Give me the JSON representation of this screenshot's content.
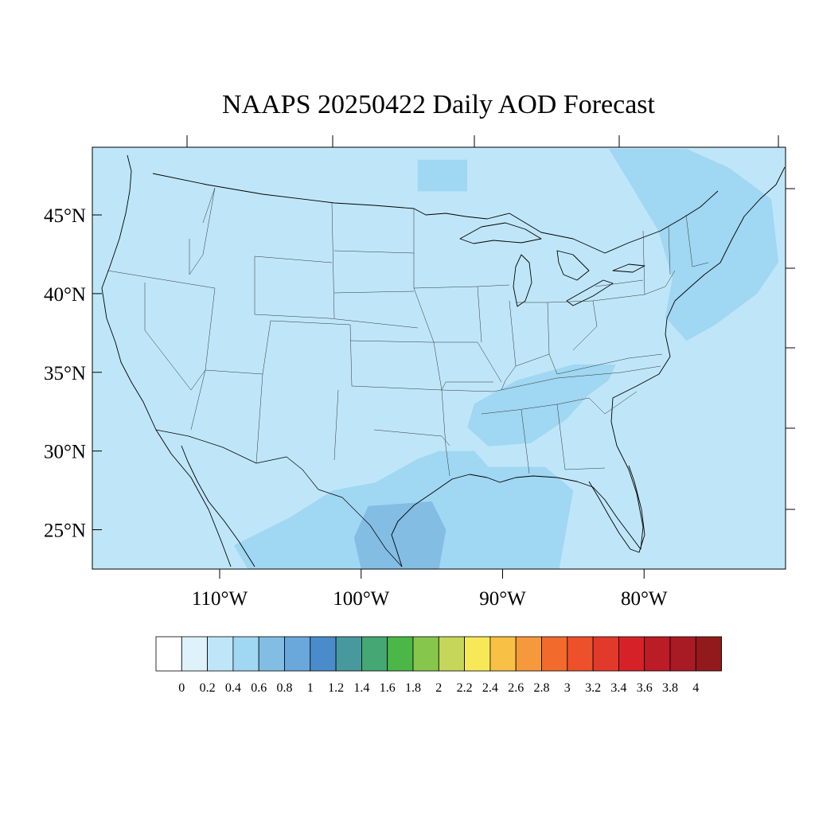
{
  "title": "NAAPS 20250422 Daily AOD Forecast",
  "map": {
    "lon_range": [
      -119,
      -70
    ],
    "lat_range": [
      22.5,
      49.3
    ],
    "lat_ticks": [
      {
        "value": 45,
        "label": "45°N"
      },
      {
        "value": 40,
        "label": "40°N"
      },
      {
        "value": 35,
        "label": "35°N"
      },
      {
        "value": 30,
        "label": "30°N"
      },
      {
        "value": 25,
        "label": "25°N"
      }
    ],
    "lon_ticks": [
      {
        "value": -110,
        "label": "110°W"
      },
      {
        "value": -100,
        "label": "100°W"
      },
      {
        "value": -90,
        "label": "90°W"
      },
      {
        "value": -80,
        "label": "80°W"
      }
    ],
    "background_class": "0.2",
    "aod_regions": [
      {
        "name": "great-lakes-plume",
        "aod": "0.4",
        "points": [
          [
            -96,
            48.5
          ],
          [
            -92.5,
            48.5
          ],
          [
            -92.5,
            46.5
          ],
          [
            -96,
            46.5
          ]
        ]
      },
      {
        "name": "northeast-plume",
        "aod": "0.4",
        "points": [
          [
            -82.5,
            49.2
          ],
          [
            -77,
            49.2
          ],
          [
            -74,
            48
          ],
          [
            -71,
            46
          ],
          [
            -70.5,
            42
          ],
          [
            -72,
            40
          ],
          [
            -75,
            38
          ],
          [
            -77,
            37
          ],
          [
            -78.5,
            38.5
          ],
          [
            -78,
            41
          ],
          [
            -79,
            44
          ],
          [
            -81,
            47
          ]
        ]
      },
      {
        "name": "southeast-plume",
        "aod": "0.4",
        "points": [
          [
            -85,
            35.5
          ],
          [
            -82,
            35.5
          ],
          [
            -82.5,
            34.5
          ],
          [
            -84,
            33.5
          ],
          [
            -85.5,
            32
          ],
          [
            -88,
            30.5
          ],
          [
            -91,
            30.3
          ],
          [
            -92.5,
            31.5
          ],
          [
            -92,
            33
          ],
          [
            -89,
            34.5
          ]
        ]
      },
      {
        "name": "south-plume",
        "aod": "0.4",
        "points": [
          [
            -94.5,
            30
          ],
          [
            -92,
            30
          ],
          [
            -91,
            29
          ],
          [
            -87,
            29
          ],
          [
            -85,
            27.5
          ],
          [
            -86,
            22.5
          ],
          [
            -108,
            22.5
          ],
          [
            -109,
            24
          ],
          [
            -105,
            25.8
          ],
          [
            -102,
            27.5
          ],
          [
            -99,
            28
          ],
          [
            -96,
            29.5
          ]
        ]
      },
      {
        "name": "gulf-core",
        "aod": "0.6",
        "points": [
          [
            -99.5,
            26.5
          ],
          [
            -95,
            26.8
          ],
          [
            -94,
            25
          ],
          [
            -94.5,
            22.5
          ],
          [
            -100,
            22.5
          ],
          [
            -100.5,
            24.5
          ]
        ]
      }
    ]
  },
  "colorbar": {
    "colors": [
      "#ffffff",
      "#dff2fb",
      "#bfe6f8",
      "#a0d7f2",
      "#83bde4",
      "#6aa7db",
      "#4a8cca",
      "#48999e",
      "#45a774",
      "#4bb747",
      "#86c64d",
      "#c4d75a",
      "#f7e858",
      "#f8c045",
      "#f6993c",
      "#f26b2c",
      "#ec512c",
      "#e13a2a",
      "#d72129",
      "#bc1c26",
      "#a91b24",
      "#921a1c"
    ],
    "labels": [
      "0",
      "0.2",
      "0.4",
      "0.6",
      "0.8",
      "1",
      "1.2",
      "1.4",
      "1.6",
      "1.8",
      "2",
      "2.2",
      "2.4",
      "2.6",
      "2.8",
      "3",
      "3.2",
      "3.4",
      "3.6",
      "3.8",
      "4"
    ]
  }
}
